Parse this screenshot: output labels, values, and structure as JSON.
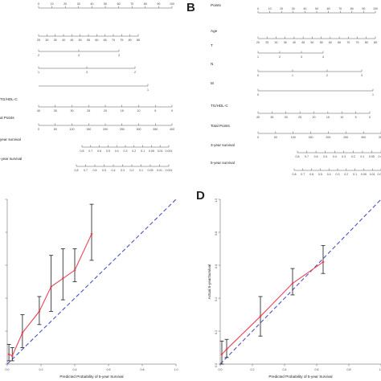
{
  "panels": {
    "b": "B",
    "d": "D"
  },
  "nomogram_left": {
    "rows": [
      {
        "label": "",
        "ticks": [
          "0",
          "10",
          "20",
          "30",
          "40",
          "50",
          "60",
          "70",
          "80",
          "90",
          "100"
        ]
      },
      {
        "label": "",
        "ticks": [
          "25",
          "30",
          "35",
          "40",
          "45",
          "50",
          "55",
          "60",
          "65",
          "70",
          "75",
          "80",
          "85"
        ]
      },
      {
        "label": "",
        "ticks": [
          "2",
          "4",
          "3"
        ]
      },
      {
        "label": "",
        "ticks": [
          "1",
          "3",
          "2"
        ]
      },
      {
        "label": "",
        "ticks": [
          "1"
        ]
      },
      {
        "label": "TG/HDL-C",
        "ticks": [
          "40",
          "35",
          "30",
          "25",
          "20",
          "15",
          "10",
          "5",
          "0"
        ]
      },
      {
        "label": "al Points",
        "ticks": [
          "0",
          "50",
          "100",
          "150",
          "200",
          "250",
          "300",
          "350",
          "400"
        ]
      },
      {
        "label": "year survival",
        "ticks": [
          "0.8",
          "0.7",
          "0.6",
          "0.5",
          "0.4",
          "0.3",
          "0.2",
          "0.1",
          "0.05",
          "0.01",
          "0.001"
        ]
      },
      {
        "label": "-year survival",
        "ticks": [
          "0.8",
          "0.7",
          "0.6",
          "0.5",
          "0.4",
          "0.3",
          "0.2",
          "0.1",
          "0.05",
          "0.01",
          "0.001"
        ]
      }
    ]
  },
  "nomogram_right": {
    "rows": [
      {
        "label": "Points",
        "ticks": [
          "0",
          "10",
          "20",
          "30",
          "40",
          "50",
          "60",
          "70",
          "80",
          "90",
          "100"
        ]
      },
      {
        "label": "Age",
        "ticks": [
          "20",
          "25",
          "30",
          "35",
          "40",
          "45",
          "50",
          "55",
          "60",
          "65",
          "70",
          "75",
          "80",
          "85"
        ]
      },
      {
        "label": "T",
        "ticks": [
          "1",
          "2",
          "3",
          "4"
        ]
      },
      {
        "label": "N",
        "ticks": [
          "0",
          "1",
          "2",
          "3"
        ]
      },
      {
        "label": "M",
        "ticks": [
          "0",
          "1"
        ]
      },
      {
        "label": "TG/HDL-C",
        "ticks": [
          "40",
          "35",
          "30",
          "25",
          "20",
          "15",
          "10",
          "5",
          "0"
        ]
      },
      {
        "label": "Total Points",
        "ticks": [
          "0",
          "50",
          "100",
          "150",
          "200",
          "250",
          "300",
          "350"
        ]
      },
      {
        "label": "3-year survival",
        "ticks": [
          "0.8",
          "0.7",
          "0.6",
          "0.5",
          "0.4",
          "0.3",
          "0.2",
          "0.1",
          "0.05",
          "0.01"
        ]
      },
      {
        "label": "5-year survival",
        "ticks": [
          "0.8",
          "0.7",
          "0.6",
          "0.5",
          "0.4",
          "0.3",
          "0.2",
          "0.1",
          "0.05",
          "0.01",
          "0.001"
        ]
      }
    ]
  },
  "chart_data": [
    {
      "type": "line",
      "xlabel": "Predicted Probability of 5-year Survival",
      "ylabel": "",
      "xlim": [
        0,
        1.0
      ],
      "ylim": [
        0,
        1.0
      ],
      "xticks": [
        "0.0",
        "0.2",
        "0.4",
        "0.6",
        "0.8",
        "1.0"
      ],
      "yticks": [],
      "colors": {
        "observed": "#e8455a",
        "ideal": "#4a52c8",
        "error": "#333333"
      },
      "points": [
        {
          "x": 0.01,
          "y": 0.06,
          "lo": 0.02,
          "hi": 0.12
        },
        {
          "x": 0.03,
          "y": 0.05,
          "lo": 0.02,
          "hi": 0.1
        },
        {
          "x": 0.09,
          "y": 0.19,
          "lo": 0.1,
          "hi": 0.3
        },
        {
          "x": 0.19,
          "y": 0.32,
          "lo": 0.24,
          "hi": 0.41
        },
        {
          "x": 0.26,
          "y": 0.47,
          "lo": 0.32,
          "hi": 0.66
        },
        {
          "x": 0.33,
          "y": 0.52,
          "lo": 0.39,
          "hi": 0.7
        },
        {
          "x": 0.4,
          "y": 0.57,
          "lo": 0.5,
          "hi": 0.7
        },
        {
          "x": 0.5,
          "y": 0.79,
          "lo": 0.63,
          "hi": 0.97
        }
      ]
    },
    {
      "type": "line",
      "xlabel": "Predicted Probability of 5-year Survival",
      "ylabel": "Actual 5-yearSurvival",
      "xlim": [
        0,
        1.0
      ],
      "ylim": [
        0,
        1.0
      ],
      "xticks": [
        "0.0",
        "0.2",
        "0.4",
        "0.6",
        "0.8",
        "1.0"
      ],
      "yticks": [
        "0.0",
        "0.2",
        "0.4",
        "0.6",
        "0.8",
        "1.0"
      ],
      "colors": {
        "observed": "#e8455a",
        "ideal": "#4a52c8",
        "error": "#333333"
      },
      "points": [
        {
          "x": 0.01,
          "y": 0.06,
          "lo": 0.0,
          "hi": 0.14
        },
        {
          "x": 0.04,
          "y": 0.09,
          "lo": 0.04,
          "hi": 0.15
        },
        {
          "x": 0.25,
          "y": 0.29,
          "lo": 0.17,
          "hi": 0.41
        },
        {
          "x": 0.45,
          "y": 0.49,
          "lo": 0.42,
          "hi": 0.58
        },
        {
          "x": 0.64,
          "y": 0.62,
          "lo": 0.55,
          "hi": 0.72
        }
      ]
    }
  ]
}
